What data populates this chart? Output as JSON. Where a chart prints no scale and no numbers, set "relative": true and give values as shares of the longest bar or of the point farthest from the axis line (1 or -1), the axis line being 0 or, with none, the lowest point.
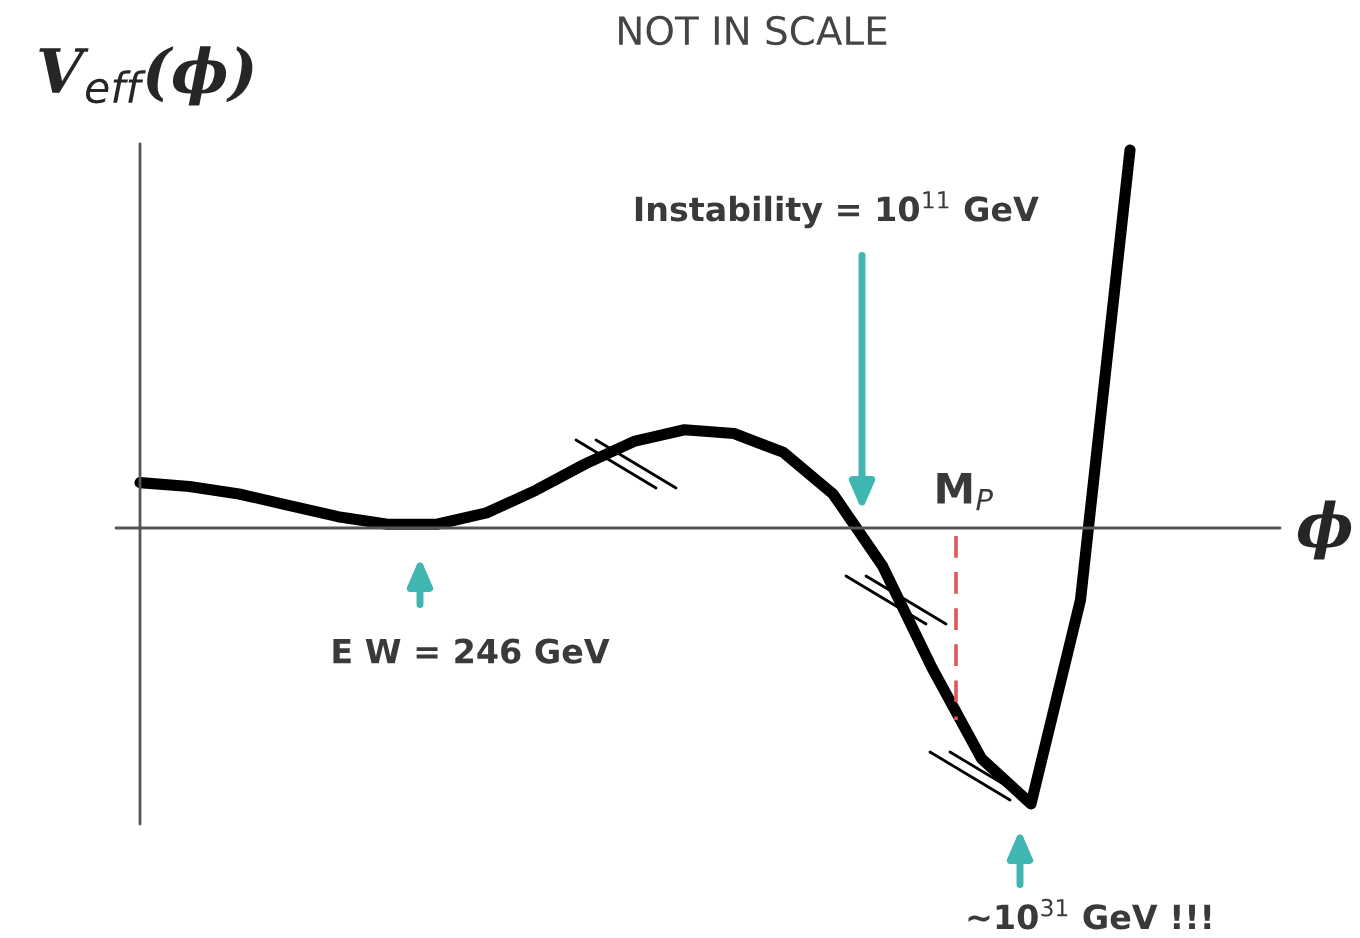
{
  "chart_data": {
    "type": "line",
    "relative": true,
    "title": "NOT IN SCALE",
    "ylabel": "V$_{eff}$(ϕ)",
    "xlabel": "ϕ",
    "categories": [
      null,
      null,
      null,
      null,
      null,
      null,
      null,
      null,
      null,
      null,
      null,
      null,
      null,
      null,
      null,
      null,
      null,
      null,
      null,
      null,
      null
    ],
    "series": [
      {
        "color": "#000000",
        "values": [
          0.12,
          0.11,
          0.09,
          0.06,
          0.03,
          0.01,
          0.01,
          0.04,
          0.1,
          0.17,
          0.23,
          0.26,
          0.25,
          0.2,
          0.09,
          -0.1,
          -0.37,
          -0.61,
          -0.73,
          -0.19,
          1
        ]
      }
    ],
    "marker": "none",
    "line_style": "solid",
    "legend": false,
    "annotations": [
      "Instability = 10$^{11}$ GeV",
      "E W = 246 GeV",
      "~10$^{31}$ GeV !!!",
      "M$_{P}$"
    ]
  }
}
